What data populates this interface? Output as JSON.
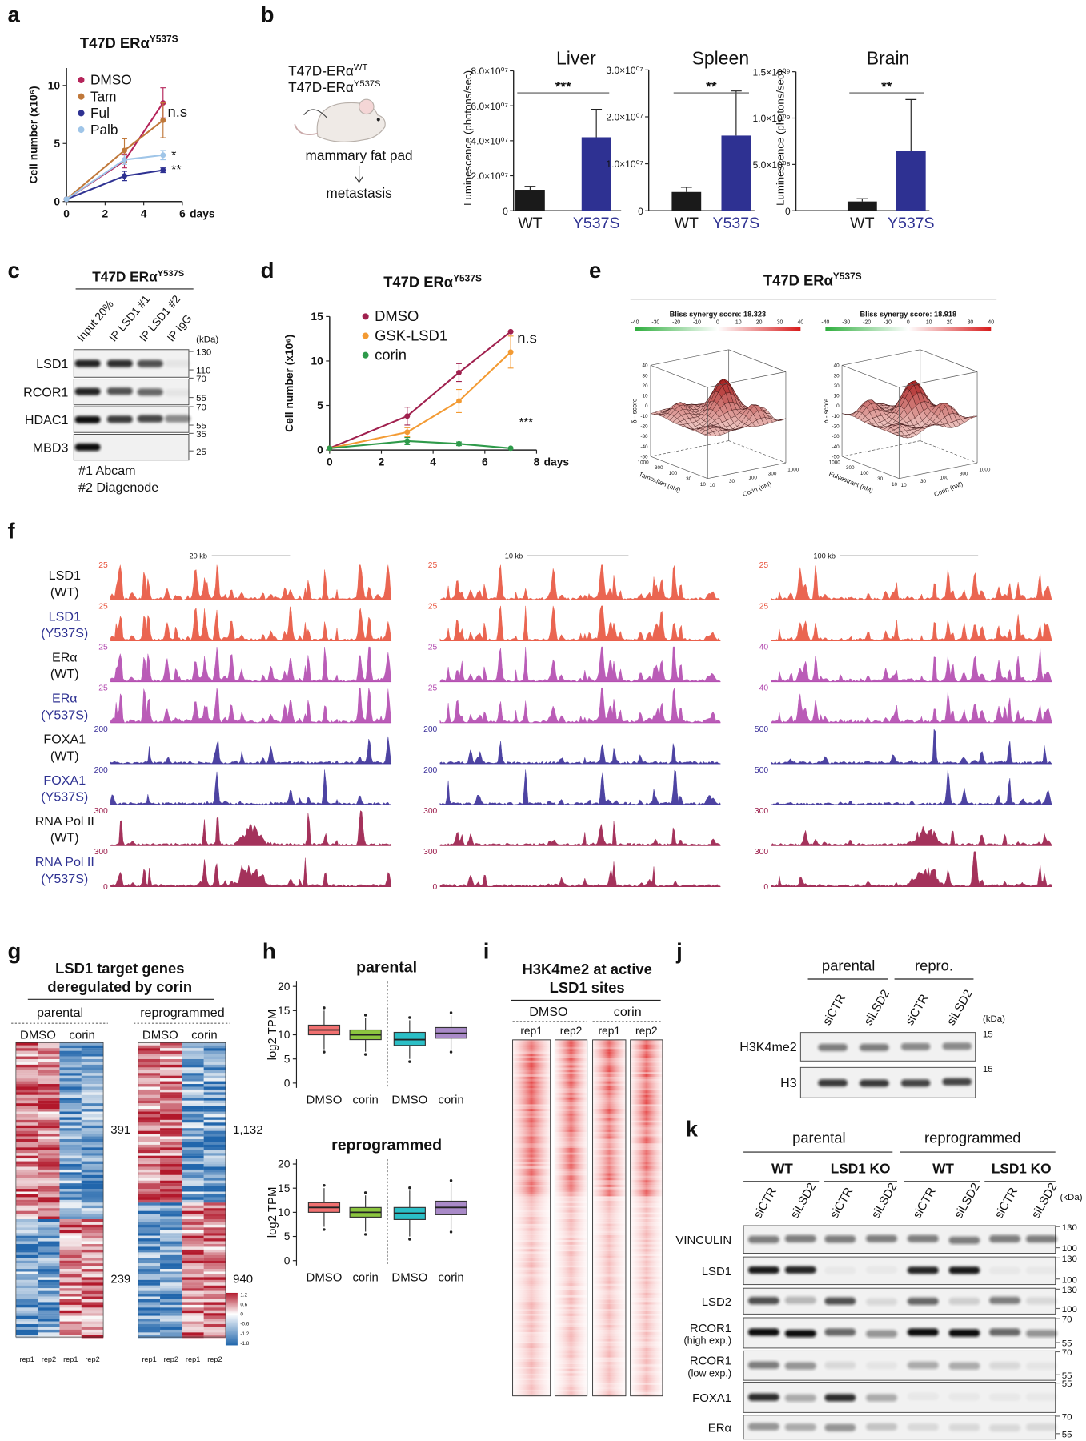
{
  "panel_labels": [
    "a",
    "b",
    "c",
    "d",
    "e",
    "f",
    "g",
    "h",
    "i",
    "j",
    "k"
  ],
  "a": {
    "type": "line",
    "title": "T47D ERα",
    "title_superscript": "Y537S",
    "ylabel": "Cell number (x10⁶)",
    "xlabel": "days",
    "x": [
      0,
      3,
      5
    ],
    "xlim": [
      0,
      6
    ],
    "xticks": [
      0,
      2,
      4,
      6
    ],
    "ylim": [
      0,
      11.5
    ],
    "yticks": [
      0,
      5,
      10
    ],
    "series": [
      {
        "name": "DMSO",
        "color": "#b5245a",
        "values": [
          0.2,
          3.5,
          8.5
        ],
        "errors": [
          0,
          0.6,
          1.3
        ]
      },
      {
        "name": "Tam",
        "color": "#c0783a",
        "values": [
          0.2,
          4.4,
          7.0
        ],
        "errors": [
          0,
          1.0,
          1.5
        ]
      },
      {
        "name": "Ful",
        "color": "#2e3192",
        "values": [
          0.2,
          2.2,
          2.7
        ],
        "errors": [
          0,
          0.4,
          0.2
        ]
      },
      {
        "name": "Palb",
        "color": "#9fc5e8",
        "values": [
          0.2,
          3.6,
          4.0
        ],
        "errors": [
          0,
          0.4,
          0.4
        ]
      }
    ],
    "annotations": [
      "n.s",
      "*",
      "**"
    ]
  },
  "b": {
    "schematic": {
      "lines": [
        {
          "text": "T47D-ERα",
          "superscript": "WT"
        },
        {
          "text": "T47D-ERα",
          "superscript": "Y537S"
        }
      ],
      "site": "mammary fat pad",
      "outcome": "metastasis"
    },
    "charts": [
      {
        "type": "bar",
        "title": "Liver",
        "ylabel": "Luminescence (photons/sec)",
        "categories": [
          "WT",
          "Y537S"
        ],
        "colors": [
          "#1a1a1a",
          "#2e3192"
        ],
        "values": [
          12000000,
          42000000
        ],
        "errors": [
          2000000,
          16000000
        ],
        "ylim": [
          0,
          80000000
        ],
        "yticks": [
          0,
          {
            "value": 20000000,
            "label": "2.0×10⁰⁷"
          },
          {
            "value": 40000000,
            "label": "4.0×10⁰⁷"
          },
          {
            "value": 60000000,
            "label": "6.0×10⁰⁷"
          },
          {
            "value": 80000000,
            "label": "8.0×10⁰⁷"
          }
        ],
        "significance": "***"
      },
      {
        "type": "bar",
        "title": "Spleen",
        "categories": [
          "WT",
          "Y537S"
        ],
        "colors": [
          "#1a1a1a",
          "#2e3192"
        ],
        "values": [
          4000000,
          16000000
        ],
        "errors": [
          1000000,
          9500000
        ],
        "ylim": [
          0,
          30000000
        ],
        "yticks": [
          0,
          {
            "value": 10000000,
            "label": "1.0×10⁰⁷"
          },
          {
            "value": 20000000,
            "label": "2.0×10⁰⁷"
          },
          {
            "value": 30000000,
            "label": "3.0×10⁰⁷"
          }
        ],
        "significance": "**"
      },
      {
        "type": "bar",
        "title": "Brain",
        "ylabel": "Luminescence (photons/sec)",
        "categories": [
          "WT",
          "Y537S"
        ],
        "colors": [
          "#1a1a1a",
          "#2e3192"
        ],
        "values": [
          100000000,
          650000000
        ],
        "errors": [
          30000000,
          550000000
        ],
        "ylim": [
          0,
          1500000000
        ],
        "yticks": [
          0,
          {
            "value": 500000000,
            "label": "5.0×10⁰⁸"
          },
          {
            "value": 1000000000,
            "label": "1.0×10⁰⁹"
          },
          {
            "value": 1500000000,
            "label": "1.5×10⁰⁹"
          }
        ],
        "significance": "**"
      }
    ]
  },
  "c": {
    "title": "T47D ERα",
    "title_superscript": "Y537S",
    "lanes": [
      "Input 20%",
      "IP LSD1 #1",
      "IP LSD1 #2",
      "IP IgG"
    ],
    "unit": "(kDa)",
    "rows": [
      "LSD1",
      "RCOR1",
      "HDAC1",
      "MBD3"
    ],
    "markers": [
      130,
      110,
      70,
      55,
      70,
      55,
      35,
      25
    ],
    "notes": [
      "#1 Abcam",
      "#2 Diagenode"
    ]
  },
  "d": {
    "type": "line",
    "title": "T47D ERα",
    "title_superscript": "Y537S",
    "ylabel": "Cell number (x10⁶)",
    "xlabel": "days",
    "x": [
      0,
      3,
      5,
      7
    ],
    "xlim": [
      0,
      8
    ],
    "xticks": [
      0,
      2,
      4,
      6,
      8
    ],
    "ylim": [
      0,
      15
    ],
    "yticks": [
      0,
      5,
      10,
      15
    ],
    "series": [
      {
        "name": "DMSO",
        "color": "#a0204e",
        "values": [
          0.2,
          3.8,
          8.7,
          13.3
        ],
        "errors": [
          0,
          1.0,
          1.0,
          0
        ]
      },
      {
        "name": "GSK-LSD1",
        "color": "#f39a32",
        "values": [
          0.2,
          2.0,
          5.5,
          11.0
        ],
        "errors": [
          0,
          0.5,
          1.3,
          1.8
        ]
      },
      {
        "name": "corin",
        "color": "#2e9a4a",
        "values": [
          0.2,
          1.0,
          0.7,
          0.2
        ],
        "errors": [
          0,
          0.4,
          0.2,
          0
        ]
      }
    ],
    "annotations": [
      "n.s",
      "***"
    ]
  },
  "e": {
    "title": "T47D ERα",
    "title_superscript": "Y537S",
    "plots": [
      {
        "score_label": "Bliss synergy score: 18.323",
        "y_axis": "Tamoxifen (nM)"
      },
      {
        "score_label": "Bliss synergy score: 18.918",
        "y_axis": "Fulvestrant (nM)"
      }
    ],
    "x_axis": "Corin (nM)",
    "z_axis": "δ - score",
    "colorbar_ticks": [
      -40,
      -30,
      -20,
      -10,
      0,
      10,
      20,
      30,
      40
    ],
    "z_ticks": [
      40,
      30,
      20,
      10,
      0,
      -10,
      -20,
      -30,
      -40,
      -50
    ],
    "dose_ticks": [
      1000,
      300,
      100,
      30,
      10
    ]
  },
  "f": {
    "tracks": [
      {
        "name": "LSD1",
        "condition": "(WT)",
        "color": "#e8553f"
      },
      {
        "name": "LSD1",
        "condition": "(Y537S)",
        "color": "#e8553f"
      },
      {
        "name": "ERα",
        "condition": "(WT)",
        "color": "#b34bb0"
      },
      {
        "name": "ERα",
        "condition": "(Y537S)",
        "color": "#b34bb0"
      },
      {
        "name": "FOXA1",
        "condition": "(WT)",
        "color": "#3a2f99"
      },
      {
        "name": "FOXA1",
        "condition": "(Y537S)",
        "color": "#3a2f99"
      },
      {
        "name": "RNA Pol II",
        "condition": "(WT)",
        "color": "#9b1c4a"
      },
      {
        "name": "RNA Pol II",
        "condition": "(Y537S)",
        "color": "#9b1c4a"
      }
    ],
    "columns": [
      {
        "scale": "20 kb",
        "ranges": [
          25,
          25,
          25,
          25,
          200,
          200,
          300,
          300
        ],
        "baseline": 0
      },
      {
        "scale": "10 kb",
        "ranges": [
          25,
          25,
          25,
          25,
          200,
          200,
          300,
          300
        ],
        "baseline": 0
      },
      {
        "scale": "100 kb",
        "ranges": [
          25,
          25,
          40,
          40,
          500,
          500,
          300,
          300
        ],
        "baseline": 0
      }
    ]
  },
  "g": {
    "title": [
      "LSD1 target genes",
      "deregulated by corin"
    ],
    "groups": [
      {
        "name": "parental",
        "up": "391",
        "down": "239"
      },
      {
        "name": "reprogrammed",
        "up": "1,132",
        "down": "940"
      }
    ],
    "conditions": [
      "DMSO",
      "corin"
    ],
    "replicates": [
      "rep1",
      "rep2",
      "rep1",
      "rep2"
    ],
    "colorbar_ticks": [
      1.2,
      0.6,
      0,
      -0.6,
      -1.2,
      -1.8
    ]
  },
  "h": {
    "ylabel": "log2 TPM",
    "categories": [
      "DMSO",
      "corin",
      "DMSO",
      "corin"
    ],
    "colors": [
      "#f07070",
      "#8cc63f",
      "#2bbfc6",
      "#a98ac8"
    ],
    "ylim": [
      -1,
      21
    ],
    "yticks": [
      0,
      5,
      10,
      15,
      20
    ],
    "plots": [
      {
        "title": "parental",
        "boxes": [
          {
            "min": 7,
            "q1": 10,
            "median": 11,
            "q3": 12,
            "max": 15
          },
          {
            "min": 6.5,
            "q1": 9,
            "median": 10,
            "q3": 11,
            "max": 13.5
          },
          {
            "min": 5,
            "q1": 7.8,
            "median": 9,
            "q3": 10.5,
            "max": 13
          },
          {
            "min": 7,
            "q1": 9.3,
            "median": 10.3,
            "q3": 11.5,
            "max": 14
          }
        ]
      },
      {
        "title": "reprogrammed",
        "boxes": [
          {
            "min": 7,
            "q1": 10,
            "median": 11,
            "q3": 12,
            "max": 15
          },
          {
            "min": 6,
            "q1": 9,
            "median": 10,
            "q3": 11,
            "max": 13.5
          },
          {
            "min": 5,
            "q1": 8.5,
            "median": 9.8,
            "q3": 11,
            "max": 14.5
          },
          {
            "min": 6.5,
            "q1": 9.5,
            "median": 11,
            "q3": 12.3,
            "max": 16
          }
        ]
      }
    ]
  },
  "i": {
    "title": [
      "H3K4me2 at active",
      "LSD1 sites"
    ],
    "conditions": [
      "DMSO",
      "corin"
    ],
    "replicates": [
      "rep1",
      "rep2",
      "rep1",
      "rep2"
    ]
  },
  "j": {
    "groups": [
      "parental",
      "repro."
    ],
    "lanes": [
      "siCTR",
      "siLSD2",
      "siCTR",
      "siLSD2"
    ],
    "unit": "(kDa)",
    "rows": [
      "H3K4me2",
      "H3"
    ],
    "markers": [
      15,
      15
    ]
  },
  "k": {
    "groups": [
      "parental",
      "reprogrammed"
    ],
    "genotypes": [
      "WT",
      "LSD1 KO",
      "WT",
      "LSD1 KO"
    ],
    "lanes": [
      "siCTR",
      "siLSD2",
      "siCTR",
      "siLSD2",
      "siCTR",
      "siLSD2",
      "siCTR",
      "siLSD2"
    ],
    "unit": "(kDa)",
    "rows": [
      {
        "name": "VINCULIN",
        "markers": [
          130,
          100
        ]
      },
      {
        "name": "LSD1",
        "markers": [
          130,
          100
        ]
      },
      {
        "name": "LSD2",
        "markers": [
          130,
          100
        ]
      },
      {
        "name": "RCOR1",
        "note": "(high exp.)",
        "markers": [
          70,
          55
        ]
      },
      {
        "name": "RCOR1",
        "note": "(low exp.)",
        "markers": [
          70,
          55
        ]
      },
      {
        "name": "FOXA1",
        "markers": [
          55
        ]
      },
      {
        "name": "ERα",
        "markers": [
          70,
          55
        ]
      }
    ]
  }
}
